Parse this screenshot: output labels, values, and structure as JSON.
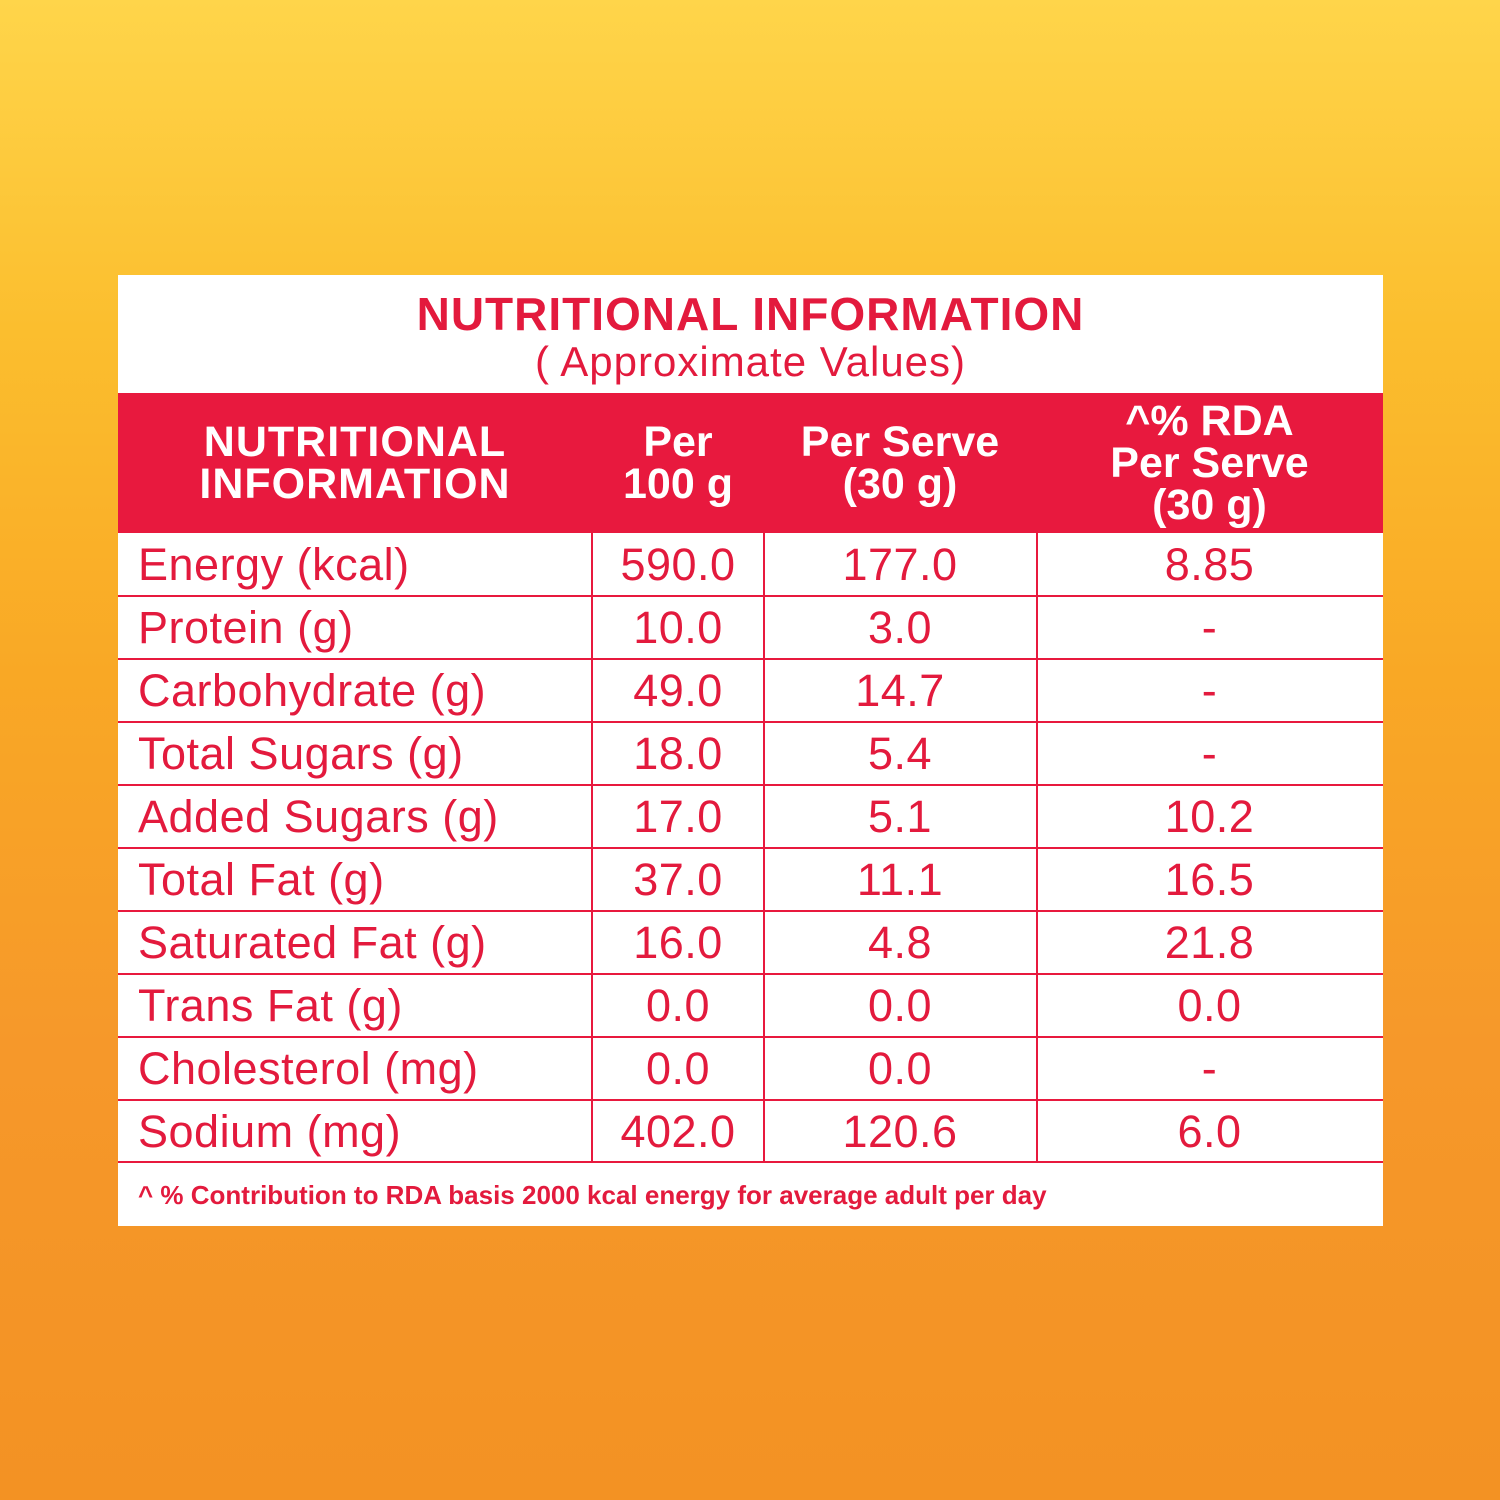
{
  "title": "NUTRITIONAL INFORMATION",
  "subtitle": "( Approximate Values)",
  "headers": {
    "col1": "NUTRITIONAL\nINFORMATION",
    "col2": "Per\n100 g",
    "col3": "Per Serve\n(30 g)",
    "col4": "^% RDA\nPer Serve\n(30 g)"
  },
  "rows": [
    {
      "nutrient": "Energy (kcal)",
      "per100": "590.0",
      "perServe": "177.0",
      "rda": "8.85"
    },
    {
      "nutrient": "Protein (g)",
      "per100": "10.0",
      "perServe": "3.0",
      "rda": "-"
    },
    {
      "nutrient": "Carbohydrate (g)",
      "per100": "49.0",
      "perServe": "14.7",
      "rda": "-"
    },
    {
      "nutrient": "Total Sugars (g)",
      "per100": "18.0",
      "perServe": "5.4",
      "rda": "-"
    },
    {
      "nutrient": "Added Sugars (g)",
      "per100": "17.0",
      "perServe": "5.1",
      "rda": "10.2"
    },
    {
      "nutrient": "Total Fat (g)",
      "per100": "37.0",
      "perServe": "11.1",
      "rda": "16.5"
    },
    {
      "nutrient": "Saturated Fat (g)",
      "per100": "16.0",
      "perServe": "4.8",
      "rda": "21.8"
    },
    {
      "nutrient": "Trans Fat (g)",
      "per100": "0.0",
      "perServe": "0.0",
      "rda": "0.0"
    },
    {
      "nutrient": "Cholesterol (mg)",
      "per100": "0.0",
      "perServe": "0.0",
      "rda": "-"
    },
    {
      "nutrient": "Sodium (mg)",
      "per100": "402.0",
      "perServe": "120.6",
      "rda": "6.0"
    }
  ],
  "footnote": "^ % Contribution to RDA basis 2000 kcal energy for average adult per day",
  "colors": {
    "accent": "#E8193E",
    "text": "#E31A3D",
    "background_top": "#FFD54A",
    "background_bottom": "#F39223"
  }
}
